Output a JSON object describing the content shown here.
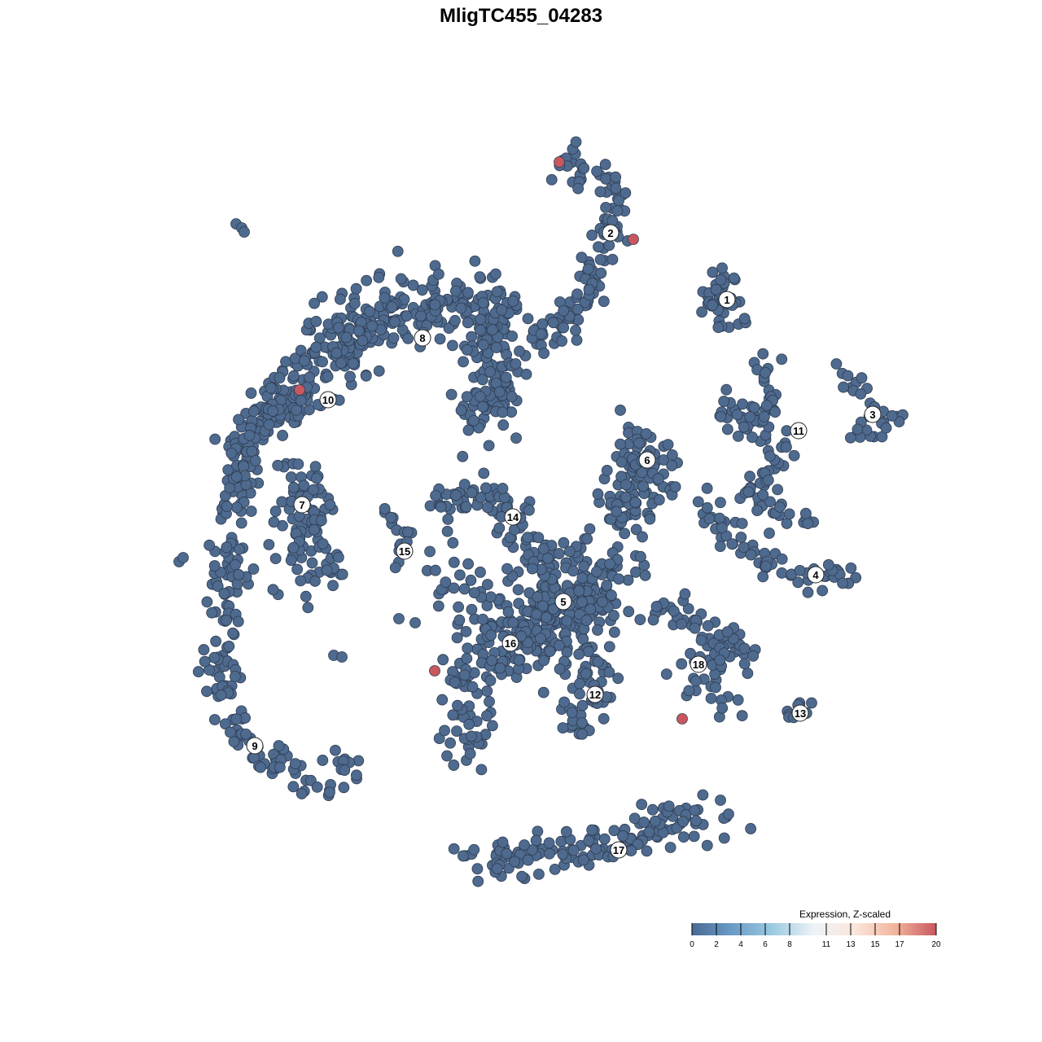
{
  "chart_data": {
    "type": "scatter",
    "title": "MligTC455_04283",
    "xlabel": "",
    "ylabel": "",
    "grid": false,
    "point_color_low": "#4e6a8e",
    "point_color_high": "#c8575f",
    "legend": {
      "title": "Expression, Z-scaled",
      "placement": "bottom-right",
      "ticks": [
        "0",
        "2",
        "4",
        "6",
        "8",
        "11",
        "13",
        "15",
        "17",
        "20"
      ],
      "tick_values": [
        0,
        2,
        4,
        6,
        8,
        11,
        13,
        15,
        17,
        20
      ],
      "colors": [
        "#4a6a94",
        "#6b9cc8",
        "#9ccbe2",
        "#eef3f7",
        "#fbe6dc",
        "#f2b49c",
        "#c8575f"
      ]
    },
    "clusters": [
      {
        "label": "1",
        "label_at": [
          23.3,
          27.2
        ],
        "path": [
          [
            22,
            30
          ],
          [
            23,
            26
          ],
          [
            24,
            25
          ]
        ],
        "n": 40,
        "spread": 2
      },
      {
        "label": "2",
        "label_at": [
          9,
          35.4
        ],
        "path": [
          [
            3,
            44.5
          ],
          [
            8,
            42.5
          ],
          [
            10,
            40
          ],
          [
            8.5,
            34
          ],
          [
            6,
            28
          ],
          [
            3,
            23
          ],
          [
            0,
            22.5
          ]
        ],
        "n": 120,
        "spread": 1.5
      },
      {
        "label": "3",
        "label_at": [
          41.2,
          13.1
        ],
        "path": [
          [
            37,
            19
          ],
          [
            39,
            17
          ],
          [
            41,
            13.5
          ],
          [
            44.5,
            12.2
          ],
          [
            39,
            10.5
          ]
        ],
        "n": 30,
        "spread": 1
      },
      {
        "label": "4",
        "label_at": [
          34.2,
          -6.6
        ],
        "path": [
          [
            20,
            3
          ],
          [
            23,
            -2
          ],
          [
            28,
            -5
          ],
          [
            34,
            -7
          ],
          [
            39.5,
            -6.5
          ]
        ],
        "n": 60,
        "spread": 1.2
      },
      {
        "label": "5",
        "label_at": [
          3.2,
          -9.9
        ],
        "path": [
          [
            0,
            -4
          ],
          [
            4,
            -12
          ],
          [
            -1,
            -14
          ],
          [
            8,
            -6
          ]
        ],
        "n": 300,
        "spread": 4
      },
      {
        "label": "6",
        "label_at": [
          13.5,
          7.5
        ],
        "path": [
          [
            10,
            10
          ],
          [
            15,
            6
          ],
          [
            11,
            3
          ],
          [
            10,
            0
          ]
        ],
        "n": 110,
        "spread": 2.5
      },
      {
        "label": "7",
        "label_at": [
          -28.9,
          2
        ],
        "path": [
          [
            -30,
            6
          ],
          [
            -28,
            -2
          ],
          [
            -27,
            -7
          ]
        ],
        "n": 100,
        "spread": 3
      },
      {
        "label": "8",
        "label_at": [
          -14.1,
          22.5
        ],
        "path": [
          [
            -33,
            12
          ],
          [
            -28,
            18
          ],
          [
            -20,
            25
          ],
          [
            -10,
            27
          ],
          [
            -5,
            25
          ],
          [
            -6,
            15
          ],
          [
            -7,
            12
          ]
        ],
        "n": 450,
        "spread": 3
      },
      {
        "label": "9",
        "label_at": [
          -34.7,
          -27.6
        ],
        "path": [
          [
            -37,
            -26
          ],
          [
            -32,
            -30
          ],
          [
            -27,
            -33
          ],
          [
            -23,
            -29
          ]
        ],
        "n": 60,
        "spread": 1.5
      },
      {
        "label": "10",
        "label_at": [
          -25.7,
          14.9
        ],
        "path": [
          [
            -30,
            14
          ],
          [
            -35,
            13
          ],
          [
            -37,
            3
          ],
          [
            -38,
            -7
          ],
          [
            -39,
            -18
          ],
          [
            -37,
            -25
          ]
        ],
        "n": 180,
        "spread": 1.5
      },
      {
        "label": "11",
        "label_at": [
          32.1,
          11.1
        ],
        "path": [
          [
            26.5,
            21
          ],
          [
            29,
            17
          ],
          [
            28.5,
            13
          ],
          [
            23,
            13.5
          ],
          [
            30,
            10
          ],
          [
            30,
            8
          ],
          [
            28,
            4
          ],
          [
            25,
            2
          ],
          [
            33,
            1
          ]
        ],
        "n": 100,
        "spread": 1.5
      },
      {
        "label": "12",
        "label_at": [
          7.1,
          -21.3
        ],
        "path": [
          [
            6,
            -17
          ],
          [
            7,
            -22
          ],
          [
            4,
            -24
          ]
        ],
        "n": 50,
        "spread": 2
      },
      {
        "label": "13",
        "label_at": [
          32.3,
          -23.6
        ],
        "path": [
          [
            29.5,
            -23.8
          ],
          [
            35,
            -22.5
          ]
        ],
        "n": 10,
        "spread": 0.8
      },
      {
        "label": "14",
        "label_at": [
          -3,
          0.5
        ],
        "path": [
          [
            -12,
            3
          ],
          [
            -5,
            3
          ],
          [
            -3,
            1
          ],
          [
            -2,
            -2
          ]
        ],
        "n": 60,
        "spread": 1.5
      },
      {
        "label": "15",
        "label_at": [
          -16.3,
          -3.7
        ],
        "path": [
          [
            -20,
            1.5
          ],
          [
            -16,
            -2
          ],
          [
            -16.5,
            -5
          ],
          [
            -18.5,
            -7
          ]
        ],
        "n": 15,
        "spread": 0.8
      },
      {
        "label": "16",
        "label_at": [
          -3.3,
          -15
        ],
        "path": [
          [
            -11,
            -5.5
          ],
          [
            -6,
            -13
          ],
          [
            -3,
            -16
          ],
          [
            -11,
            -18
          ],
          [
            -8,
            -22
          ],
          [
            -10,
            -28
          ]
        ],
        "n": 130,
        "spread": 2.5
      },
      {
        "label": "17",
        "label_at": [
          10,
          -40.4
        ],
        "path": [
          [
            -9,
            -42.5
          ],
          [
            0,
            -41
          ],
          [
            8,
            -40
          ],
          [
            16,
            -37
          ],
          [
            23,
            -37
          ]
        ],
        "n": 140,
        "spread": 2
      },
      {
        "label": "18",
        "label_at": [
          19.8,
          -17.6
        ],
        "path": [
          [
            15,
            -11
          ],
          [
            20,
            -13
          ],
          [
            25,
            -16
          ],
          [
            20,
            -19
          ],
          [
            24,
            -23
          ]
        ],
        "n": 80,
        "spread": 2
      }
    ],
    "stray_points": [
      [
        -37,
        36.5
      ],
      [
        -36.3,
        36
      ],
      [
        -36,
        35.5
      ],
      [
        -44,
        -5
      ],
      [
        -43.5,
        -4.5
      ],
      [
        -25,
        -16.5
      ],
      [
        -24,
        -16.7
      ],
      [
        -17,
        -12
      ],
      [
        -15,
        -12.5
      ],
      [
        28.5,
        -1.5
      ]
    ],
    "high_expression_points": [
      {
        "x": 2.7,
        "y": 44.1,
        "value": 20
      },
      {
        "x": 11.8,
        "y": 34.6,
        "value": 20
      },
      {
        "x": -29.2,
        "y": 16.1,
        "value": 20
      },
      {
        "x": -12.6,
        "y": -18.4,
        "value": 20
      },
      {
        "x": 17.8,
        "y": -24.3,
        "value": 20
      }
    ]
  }
}
